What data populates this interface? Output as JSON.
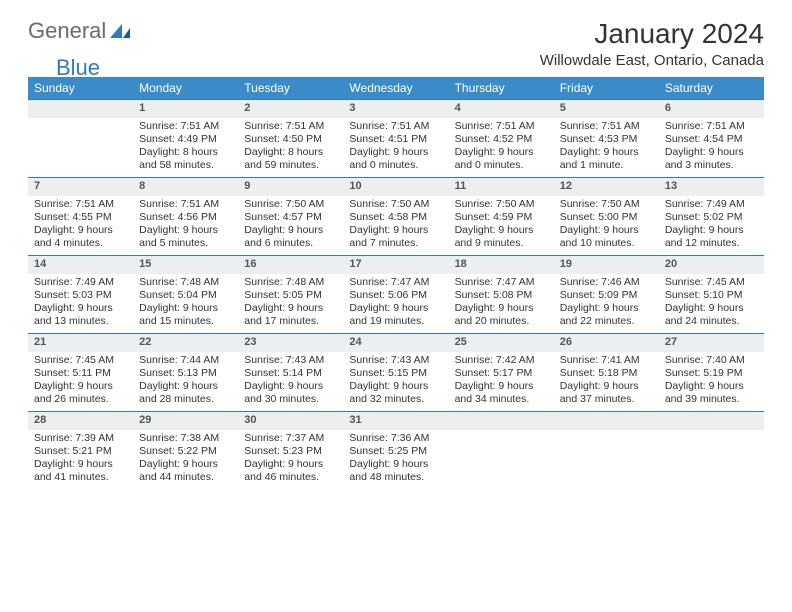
{
  "logo": {
    "part1": "General",
    "part2": "Blue"
  },
  "title": "January 2024",
  "location": "Willowdale East, Ontario, Canada",
  "day_header_bg": "#3b8bc8",
  "day_header_fg": "#ffffff",
  "daynum_bg": "#eceef0",
  "daynum_border": "#2f7ac2",
  "text_color": "#333333",
  "day_headers": [
    "Sunday",
    "Monday",
    "Tuesday",
    "Wednesday",
    "Thursday",
    "Friday",
    "Saturday"
  ],
  "weeks": [
    [
      null,
      {
        "n": "1",
        "sr": "Sunrise: 7:51 AM",
        "ss": "Sunset: 4:49 PM",
        "d1": "Daylight: 8 hours",
        "d2": "and 58 minutes."
      },
      {
        "n": "2",
        "sr": "Sunrise: 7:51 AM",
        "ss": "Sunset: 4:50 PM",
        "d1": "Daylight: 8 hours",
        "d2": "and 59 minutes."
      },
      {
        "n": "3",
        "sr": "Sunrise: 7:51 AM",
        "ss": "Sunset: 4:51 PM",
        "d1": "Daylight: 9 hours",
        "d2": "and 0 minutes."
      },
      {
        "n": "4",
        "sr": "Sunrise: 7:51 AM",
        "ss": "Sunset: 4:52 PM",
        "d1": "Daylight: 9 hours",
        "d2": "and 0 minutes."
      },
      {
        "n": "5",
        "sr": "Sunrise: 7:51 AM",
        "ss": "Sunset: 4:53 PM",
        "d1": "Daylight: 9 hours",
        "d2": "and 1 minute."
      },
      {
        "n": "6",
        "sr": "Sunrise: 7:51 AM",
        "ss": "Sunset: 4:54 PM",
        "d1": "Daylight: 9 hours",
        "d2": "and 3 minutes."
      }
    ],
    [
      {
        "n": "7",
        "sr": "Sunrise: 7:51 AM",
        "ss": "Sunset: 4:55 PM",
        "d1": "Daylight: 9 hours",
        "d2": "and 4 minutes."
      },
      {
        "n": "8",
        "sr": "Sunrise: 7:51 AM",
        "ss": "Sunset: 4:56 PM",
        "d1": "Daylight: 9 hours",
        "d2": "and 5 minutes."
      },
      {
        "n": "9",
        "sr": "Sunrise: 7:50 AM",
        "ss": "Sunset: 4:57 PM",
        "d1": "Daylight: 9 hours",
        "d2": "and 6 minutes."
      },
      {
        "n": "10",
        "sr": "Sunrise: 7:50 AM",
        "ss": "Sunset: 4:58 PM",
        "d1": "Daylight: 9 hours",
        "d2": "and 7 minutes."
      },
      {
        "n": "11",
        "sr": "Sunrise: 7:50 AM",
        "ss": "Sunset: 4:59 PM",
        "d1": "Daylight: 9 hours",
        "d2": "and 9 minutes."
      },
      {
        "n": "12",
        "sr": "Sunrise: 7:50 AM",
        "ss": "Sunset: 5:00 PM",
        "d1": "Daylight: 9 hours",
        "d2": "and 10 minutes."
      },
      {
        "n": "13",
        "sr": "Sunrise: 7:49 AM",
        "ss": "Sunset: 5:02 PM",
        "d1": "Daylight: 9 hours",
        "d2": "and 12 minutes."
      }
    ],
    [
      {
        "n": "14",
        "sr": "Sunrise: 7:49 AM",
        "ss": "Sunset: 5:03 PM",
        "d1": "Daylight: 9 hours",
        "d2": "and 13 minutes."
      },
      {
        "n": "15",
        "sr": "Sunrise: 7:48 AM",
        "ss": "Sunset: 5:04 PM",
        "d1": "Daylight: 9 hours",
        "d2": "and 15 minutes."
      },
      {
        "n": "16",
        "sr": "Sunrise: 7:48 AM",
        "ss": "Sunset: 5:05 PM",
        "d1": "Daylight: 9 hours",
        "d2": "and 17 minutes."
      },
      {
        "n": "17",
        "sr": "Sunrise: 7:47 AM",
        "ss": "Sunset: 5:06 PM",
        "d1": "Daylight: 9 hours",
        "d2": "and 19 minutes."
      },
      {
        "n": "18",
        "sr": "Sunrise: 7:47 AM",
        "ss": "Sunset: 5:08 PM",
        "d1": "Daylight: 9 hours",
        "d2": "and 20 minutes."
      },
      {
        "n": "19",
        "sr": "Sunrise: 7:46 AM",
        "ss": "Sunset: 5:09 PM",
        "d1": "Daylight: 9 hours",
        "d2": "and 22 minutes."
      },
      {
        "n": "20",
        "sr": "Sunrise: 7:45 AM",
        "ss": "Sunset: 5:10 PM",
        "d1": "Daylight: 9 hours",
        "d2": "and 24 minutes."
      }
    ],
    [
      {
        "n": "21",
        "sr": "Sunrise: 7:45 AM",
        "ss": "Sunset: 5:11 PM",
        "d1": "Daylight: 9 hours",
        "d2": "and 26 minutes."
      },
      {
        "n": "22",
        "sr": "Sunrise: 7:44 AM",
        "ss": "Sunset: 5:13 PM",
        "d1": "Daylight: 9 hours",
        "d2": "and 28 minutes."
      },
      {
        "n": "23",
        "sr": "Sunrise: 7:43 AM",
        "ss": "Sunset: 5:14 PM",
        "d1": "Daylight: 9 hours",
        "d2": "and 30 minutes."
      },
      {
        "n": "24",
        "sr": "Sunrise: 7:43 AM",
        "ss": "Sunset: 5:15 PM",
        "d1": "Daylight: 9 hours",
        "d2": "and 32 minutes."
      },
      {
        "n": "25",
        "sr": "Sunrise: 7:42 AM",
        "ss": "Sunset: 5:17 PM",
        "d1": "Daylight: 9 hours",
        "d2": "and 34 minutes."
      },
      {
        "n": "26",
        "sr": "Sunrise: 7:41 AM",
        "ss": "Sunset: 5:18 PM",
        "d1": "Daylight: 9 hours",
        "d2": "and 37 minutes."
      },
      {
        "n": "27",
        "sr": "Sunrise: 7:40 AM",
        "ss": "Sunset: 5:19 PM",
        "d1": "Daylight: 9 hours",
        "d2": "and 39 minutes."
      }
    ],
    [
      {
        "n": "28",
        "sr": "Sunrise: 7:39 AM",
        "ss": "Sunset: 5:21 PM",
        "d1": "Daylight: 9 hours",
        "d2": "and 41 minutes."
      },
      {
        "n": "29",
        "sr": "Sunrise: 7:38 AM",
        "ss": "Sunset: 5:22 PM",
        "d1": "Daylight: 9 hours",
        "d2": "and 44 minutes."
      },
      {
        "n": "30",
        "sr": "Sunrise: 7:37 AM",
        "ss": "Sunset: 5:23 PM",
        "d1": "Daylight: 9 hours",
        "d2": "and 46 minutes."
      },
      {
        "n": "31",
        "sr": "Sunrise: 7:36 AM",
        "ss": "Sunset: 5:25 PM",
        "d1": "Daylight: 9 hours",
        "d2": "and 48 minutes."
      },
      null,
      null,
      null
    ]
  ]
}
